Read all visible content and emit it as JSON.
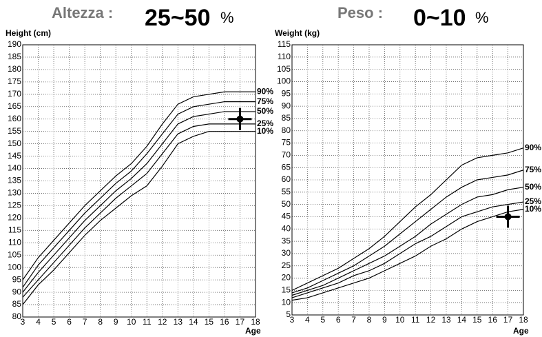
{
  "chart_data": [
    {
      "type": "line",
      "header_label": "Altezza :",
      "percentile": "25~50",
      "percentile_unit": "%",
      "ylabel": "Height (cm)",
      "xlabel": "Age",
      "x": [
        3,
        4,
        5,
        6,
        7,
        8,
        9,
        10,
        11,
        12,
        13,
        14,
        15,
        16,
        17,
        18
      ],
      "xlim": [
        3,
        18
      ],
      "xticks": [
        3,
        4,
        5,
        6,
        7,
        8,
        9,
        10,
        11,
        12,
        13,
        14,
        15,
        16,
        17,
        18
      ],
      "ylim": [
        80,
        190
      ],
      "yticks": [
        80,
        85,
        90,
        95,
        100,
        105,
        110,
        115,
        120,
        125,
        130,
        135,
        140,
        145,
        150,
        155,
        160,
        165,
        170,
        175,
        180,
        185,
        190
      ],
      "grid": true,
      "series": [
        {
          "name": "90%",
          "color": "#000000",
          "values": [
            95,
            104,
            111,
            118,
            125,
            131,
            137,
            142,
            149,
            158,
            166,
            169,
            170,
            171,
            171,
            171
          ]
        },
        {
          "name": "75%",
          "color": "#000000",
          "values": [
            92,
            101,
            108,
            115,
            122,
            128,
            134,
            139,
            146,
            154,
            162,
            165,
            166,
            167,
            167,
            167
          ]
        },
        {
          "name": "50%",
          "color": "#000000",
          "values": [
            90,
            98,
            105,
            112,
            119,
            125,
            131,
            136,
            142,
            150,
            158,
            161,
            162,
            163,
            163,
            163
          ]
        },
        {
          "name": "25%",
          "color": "#000000",
          "values": [
            88,
            95,
            102,
            109,
            116,
            122,
            128,
            133,
            138,
            146,
            154,
            157,
            158,
            158,
            158,
            158
          ]
        },
        {
          "name": "10%",
          "color": "#000000",
          "values": [
            85,
            93,
            99,
            106,
            113,
            119,
            124,
            129,
            133,
            141,
            150,
            153,
            155,
            155,
            155,
            155
          ]
        }
      ],
      "points": [
        {
          "x": 17,
          "y": 160
        }
      ]
    },
    {
      "type": "line",
      "header_label": "Peso :",
      "percentile": "0~10",
      "percentile_unit": "%",
      "ylabel": "Weight (kg)",
      "xlabel": "Age",
      "x": [
        3,
        4,
        5,
        6,
        7,
        8,
        9,
        10,
        11,
        12,
        13,
        14,
        15,
        16,
        17,
        18
      ],
      "xlim": [
        3,
        18
      ],
      "xticks": [
        3,
        4,
        5,
        6,
        7,
        8,
        9,
        10,
        11,
        12,
        13,
        14,
        15,
        16,
        17,
        18
      ],
      "ylim": [
        5,
        115
      ],
      "yticks": [
        5,
        10,
        15,
        20,
        25,
        30,
        35,
        40,
        45,
        50,
        55,
        60,
        65,
        70,
        75,
        80,
        85,
        90,
        95,
        100,
        105,
        110,
        115
      ],
      "grid": true,
      "series": [
        {
          "name": "90%",
          "color": "#000000",
          "values": [
            15,
            18,
            21,
            24,
            28,
            32,
            37,
            43,
            49,
            54,
            60,
            66,
            69,
            70,
            71,
            73
          ]
        },
        {
          "name": "75%",
          "color": "#000000",
          "values": [
            14,
            16,
            19,
            22,
            25,
            29,
            33,
            38,
            43,
            48,
            53,
            57,
            60,
            61,
            62,
            64
          ]
        },
        {
          "name": "50%",
          "color": "#000000",
          "values": [
            13,
            15,
            17,
            20,
            23,
            26,
            29,
            33,
            37,
            42,
            46,
            50,
            53,
            54,
            56,
            57
          ]
        },
        {
          "name": "25%",
          "color": "#000000",
          "values": [
            12,
            14,
            16,
            18,
            21,
            23,
            26,
            30,
            34,
            37,
            41,
            45,
            47,
            49,
            50,
            51
          ]
        },
        {
          "name": "10%",
          "color": "#000000",
          "values": [
            11,
            12,
            14,
            16,
            18,
            20,
            23,
            26,
            29,
            33,
            36,
            40,
            43,
            45,
            47,
            48
          ]
        }
      ],
      "points": [
        {
          "x": 17,
          "y": 45
        }
      ]
    }
  ]
}
